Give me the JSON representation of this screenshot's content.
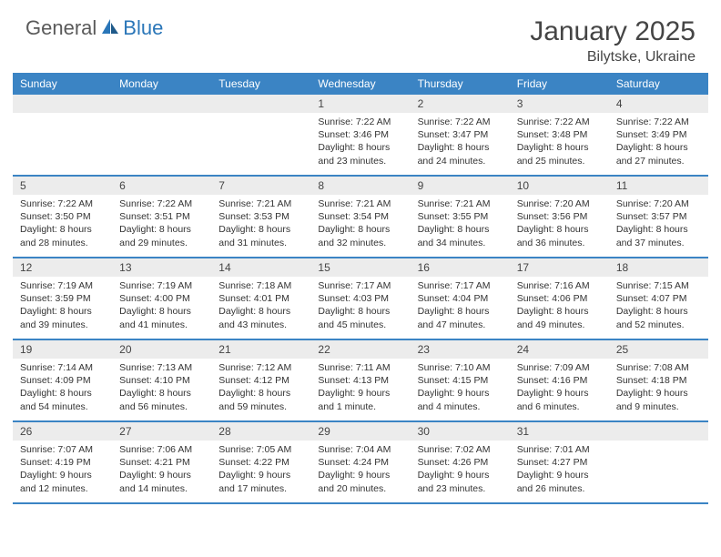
{
  "brand": {
    "general": "General",
    "blue": "Blue"
  },
  "title": {
    "month": "January 2025",
    "location": "Bilytske, Ukraine"
  },
  "colors": {
    "header_bg": "#3b84c4",
    "date_band_bg": "#ececec",
    "text": "#333333",
    "title_text": "#454545"
  },
  "day_names": [
    "Sunday",
    "Monday",
    "Tuesday",
    "Wednesday",
    "Thursday",
    "Friday",
    "Saturday"
  ],
  "weeks": [
    [
      {
        "date": "",
        "sunrise": "",
        "sunset": "",
        "daylight": ""
      },
      {
        "date": "",
        "sunrise": "",
        "sunset": "",
        "daylight": ""
      },
      {
        "date": "",
        "sunrise": "",
        "sunset": "",
        "daylight": ""
      },
      {
        "date": "1",
        "sunrise": "Sunrise: 7:22 AM",
        "sunset": "Sunset: 3:46 PM",
        "daylight": "Daylight: 8 hours and 23 minutes."
      },
      {
        "date": "2",
        "sunrise": "Sunrise: 7:22 AM",
        "sunset": "Sunset: 3:47 PM",
        "daylight": "Daylight: 8 hours and 24 minutes."
      },
      {
        "date": "3",
        "sunrise": "Sunrise: 7:22 AM",
        "sunset": "Sunset: 3:48 PM",
        "daylight": "Daylight: 8 hours and 25 minutes."
      },
      {
        "date": "4",
        "sunrise": "Sunrise: 7:22 AM",
        "sunset": "Sunset: 3:49 PM",
        "daylight": "Daylight: 8 hours and 27 minutes."
      }
    ],
    [
      {
        "date": "5",
        "sunrise": "Sunrise: 7:22 AM",
        "sunset": "Sunset: 3:50 PM",
        "daylight": "Daylight: 8 hours and 28 minutes."
      },
      {
        "date": "6",
        "sunrise": "Sunrise: 7:22 AM",
        "sunset": "Sunset: 3:51 PM",
        "daylight": "Daylight: 8 hours and 29 minutes."
      },
      {
        "date": "7",
        "sunrise": "Sunrise: 7:21 AM",
        "sunset": "Sunset: 3:53 PM",
        "daylight": "Daylight: 8 hours and 31 minutes."
      },
      {
        "date": "8",
        "sunrise": "Sunrise: 7:21 AM",
        "sunset": "Sunset: 3:54 PM",
        "daylight": "Daylight: 8 hours and 32 minutes."
      },
      {
        "date": "9",
        "sunrise": "Sunrise: 7:21 AM",
        "sunset": "Sunset: 3:55 PM",
        "daylight": "Daylight: 8 hours and 34 minutes."
      },
      {
        "date": "10",
        "sunrise": "Sunrise: 7:20 AM",
        "sunset": "Sunset: 3:56 PM",
        "daylight": "Daylight: 8 hours and 36 minutes."
      },
      {
        "date": "11",
        "sunrise": "Sunrise: 7:20 AM",
        "sunset": "Sunset: 3:57 PM",
        "daylight": "Daylight: 8 hours and 37 minutes."
      }
    ],
    [
      {
        "date": "12",
        "sunrise": "Sunrise: 7:19 AM",
        "sunset": "Sunset: 3:59 PM",
        "daylight": "Daylight: 8 hours and 39 minutes."
      },
      {
        "date": "13",
        "sunrise": "Sunrise: 7:19 AM",
        "sunset": "Sunset: 4:00 PM",
        "daylight": "Daylight: 8 hours and 41 minutes."
      },
      {
        "date": "14",
        "sunrise": "Sunrise: 7:18 AM",
        "sunset": "Sunset: 4:01 PM",
        "daylight": "Daylight: 8 hours and 43 minutes."
      },
      {
        "date": "15",
        "sunrise": "Sunrise: 7:17 AM",
        "sunset": "Sunset: 4:03 PM",
        "daylight": "Daylight: 8 hours and 45 minutes."
      },
      {
        "date": "16",
        "sunrise": "Sunrise: 7:17 AM",
        "sunset": "Sunset: 4:04 PM",
        "daylight": "Daylight: 8 hours and 47 minutes."
      },
      {
        "date": "17",
        "sunrise": "Sunrise: 7:16 AM",
        "sunset": "Sunset: 4:06 PM",
        "daylight": "Daylight: 8 hours and 49 minutes."
      },
      {
        "date": "18",
        "sunrise": "Sunrise: 7:15 AM",
        "sunset": "Sunset: 4:07 PM",
        "daylight": "Daylight: 8 hours and 52 minutes."
      }
    ],
    [
      {
        "date": "19",
        "sunrise": "Sunrise: 7:14 AM",
        "sunset": "Sunset: 4:09 PM",
        "daylight": "Daylight: 8 hours and 54 minutes."
      },
      {
        "date": "20",
        "sunrise": "Sunrise: 7:13 AM",
        "sunset": "Sunset: 4:10 PM",
        "daylight": "Daylight: 8 hours and 56 minutes."
      },
      {
        "date": "21",
        "sunrise": "Sunrise: 7:12 AM",
        "sunset": "Sunset: 4:12 PM",
        "daylight": "Daylight: 8 hours and 59 minutes."
      },
      {
        "date": "22",
        "sunrise": "Sunrise: 7:11 AM",
        "sunset": "Sunset: 4:13 PM",
        "daylight": "Daylight: 9 hours and 1 minute."
      },
      {
        "date": "23",
        "sunrise": "Sunrise: 7:10 AM",
        "sunset": "Sunset: 4:15 PM",
        "daylight": "Daylight: 9 hours and 4 minutes."
      },
      {
        "date": "24",
        "sunrise": "Sunrise: 7:09 AM",
        "sunset": "Sunset: 4:16 PM",
        "daylight": "Daylight: 9 hours and 6 minutes."
      },
      {
        "date": "25",
        "sunrise": "Sunrise: 7:08 AM",
        "sunset": "Sunset: 4:18 PM",
        "daylight": "Daylight: 9 hours and 9 minutes."
      }
    ],
    [
      {
        "date": "26",
        "sunrise": "Sunrise: 7:07 AM",
        "sunset": "Sunset: 4:19 PM",
        "daylight": "Daylight: 9 hours and 12 minutes."
      },
      {
        "date": "27",
        "sunrise": "Sunrise: 7:06 AM",
        "sunset": "Sunset: 4:21 PM",
        "daylight": "Daylight: 9 hours and 14 minutes."
      },
      {
        "date": "28",
        "sunrise": "Sunrise: 7:05 AM",
        "sunset": "Sunset: 4:22 PM",
        "daylight": "Daylight: 9 hours and 17 minutes."
      },
      {
        "date": "29",
        "sunrise": "Sunrise: 7:04 AM",
        "sunset": "Sunset: 4:24 PM",
        "daylight": "Daylight: 9 hours and 20 minutes."
      },
      {
        "date": "30",
        "sunrise": "Sunrise: 7:02 AM",
        "sunset": "Sunset: 4:26 PM",
        "daylight": "Daylight: 9 hours and 23 minutes."
      },
      {
        "date": "31",
        "sunrise": "Sunrise: 7:01 AM",
        "sunset": "Sunset: 4:27 PM",
        "daylight": "Daylight: 9 hours and 26 minutes."
      },
      {
        "date": "",
        "sunrise": "",
        "sunset": "",
        "daylight": ""
      }
    ]
  ]
}
